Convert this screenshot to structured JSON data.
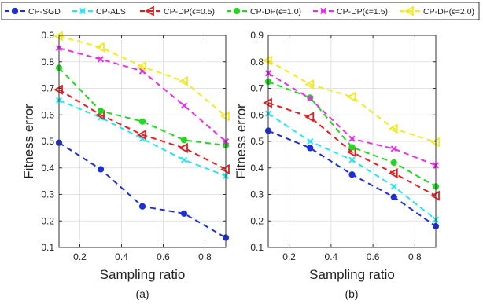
{
  "legend": [
    {
      "name": "CP-SGD",
      "color": "#1f2fd6",
      "marker": "circle"
    },
    {
      "name": "CP-ALS",
      "color": "#26e6ee",
      "marker": "x"
    },
    {
      "name": "CP-DP(ϵ=0.5)",
      "color": "#e02020",
      "marker": "triangle-left"
    },
    {
      "name": "CP-DP(ϵ=1.0)",
      "color": "#22d622",
      "marker": "circle"
    },
    {
      "name": "CP-DP(ϵ=1.5)",
      "color": "#e82fe8",
      "marker": "x"
    },
    {
      "name": "CP-DP(ϵ=2.0)",
      "color": "#f2ea22",
      "marker": "triangle-left"
    }
  ],
  "chart_data": [
    {
      "type": "line",
      "caption": "(a)",
      "xlabel": "Sampling ratio",
      "ylabel": "Fitness error",
      "xlim": [
        0.1,
        0.9
      ],
      "ylim": [
        0.1,
        0.9
      ],
      "xticks": [
        "0.2",
        "0.4",
        "0.6",
        "0.8"
      ],
      "yticks": [
        "0.1",
        "0.2",
        "0.3",
        "0.4",
        "0.5",
        "0.6",
        "0.7",
        "0.8",
        "0.9"
      ],
      "grid": true,
      "x": [
        0.1,
        0.3,
        0.5,
        0.7,
        0.9
      ],
      "series": [
        {
          "name": "CP-SGD",
          "values": [
            0.495,
            0.395,
            0.255,
            0.228,
            0.137
          ]
        },
        {
          "name": "CP-ALS",
          "values": [
            0.655,
            0.59,
            0.51,
            0.43,
            0.37
          ]
        },
        {
          "name": "CP-DP(ϵ=0.5)",
          "values": [
            0.695,
            0.6,
            0.525,
            0.475,
            0.395
          ]
        },
        {
          "name": "CP-DP(ϵ=1.0)",
          "values": [
            0.777,
            0.615,
            0.575,
            0.505,
            0.485
          ]
        },
        {
          "name": "CP-DP(ϵ=1.5)",
          "values": [
            0.852,
            0.81,
            0.765,
            0.635,
            0.5
          ]
        },
        {
          "name": "CP-DP(ϵ=2.0)",
          "values": [
            0.897,
            0.855,
            0.782,
            0.727,
            0.595
          ]
        }
      ]
    },
    {
      "type": "line",
      "caption": "(b)",
      "xlabel": "Sampling ratio",
      "ylabel": "Fitness error",
      "xlim": [
        0.1,
        0.9
      ],
      "ylim": [
        0.1,
        0.9
      ],
      "xticks": [
        "0.2",
        "0.4",
        "0.6",
        "0.8"
      ],
      "yticks": [
        "0.1",
        "0.2",
        "0.3",
        "0.4",
        "0.5",
        "0.6",
        "0.7",
        "0.8",
        "0.9"
      ],
      "grid": true,
      "x": [
        0.1,
        0.3,
        0.5,
        0.7,
        0.9
      ],
      "series": [
        {
          "name": "CP-SGD",
          "values": [
            0.54,
            0.475,
            0.375,
            0.29,
            0.18
          ]
        },
        {
          "name": "CP-ALS",
          "values": [
            0.605,
            0.5,
            0.43,
            0.33,
            0.205
          ]
        },
        {
          "name": "CP-DP(ϵ=0.5)",
          "values": [
            0.645,
            0.592,
            0.46,
            0.38,
            0.295
          ]
        },
        {
          "name": "CP-DP(ϵ=1.0)",
          "values": [
            0.725,
            0.665,
            0.478,
            0.42,
            0.33
          ]
        },
        {
          "name": "CP-DP(ϵ=1.5)",
          "values": [
            0.757,
            0.662,
            0.51,
            0.472,
            0.41
          ]
        },
        {
          "name": "CP-DP(ϵ=2.0)",
          "values": [
            0.805,
            0.715,
            0.668,
            0.548,
            0.497
          ]
        }
      ]
    }
  ]
}
